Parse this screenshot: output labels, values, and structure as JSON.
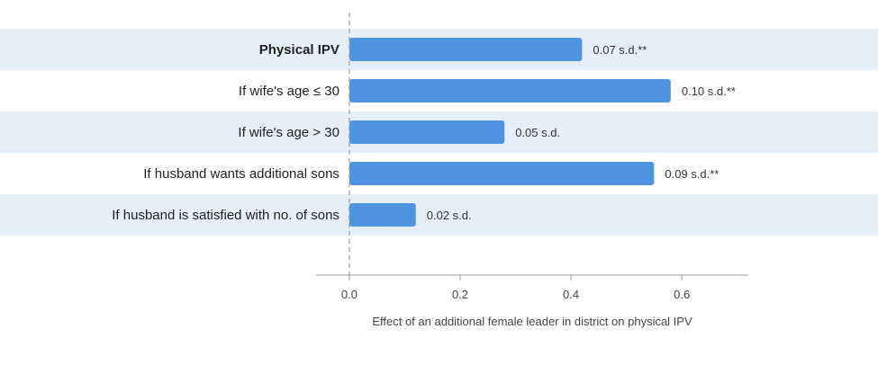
{
  "chart_data": {
    "type": "bar",
    "orientation": "horizontal",
    "categories": [
      "Physical IPV",
      "If wife's age ≤ 30",
      "If wife's age > 30",
      "If husband wants additional sons",
      "If husband is satisfied with no. of sons"
    ],
    "values": [
      0.42,
      0.58,
      0.28,
      0.55,
      0.12
    ],
    "value_labels": [
      "0.07 s.d.**",
      "0.10 s.d.**",
      "0.05 s.d.",
      "0.09 s.d.**",
      "0.02 s.d."
    ],
    "bold_categories": [
      "Physical IPV"
    ],
    "xlabel": "Effect of an additional female leader in district on physical IPV",
    "ylabel": "",
    "title": "",
    "xlim": [
      -0.06,
      0.72
    ],
    "xticks": [
      0.0,
      0.2,
      0.4,
      0.6
    ],
    "xtick_labels": [
      "0.0",
      "0.2",
      "0.4",
      "0.6"
    ],
    "reference_line": 0.0,
    "grid": false,
    "colors": {
      "bar": "#4f94e0",
      "band": "#e6eefa",
      "axis": "#999999",
      "reference": "#999999"
    }
  }
}
